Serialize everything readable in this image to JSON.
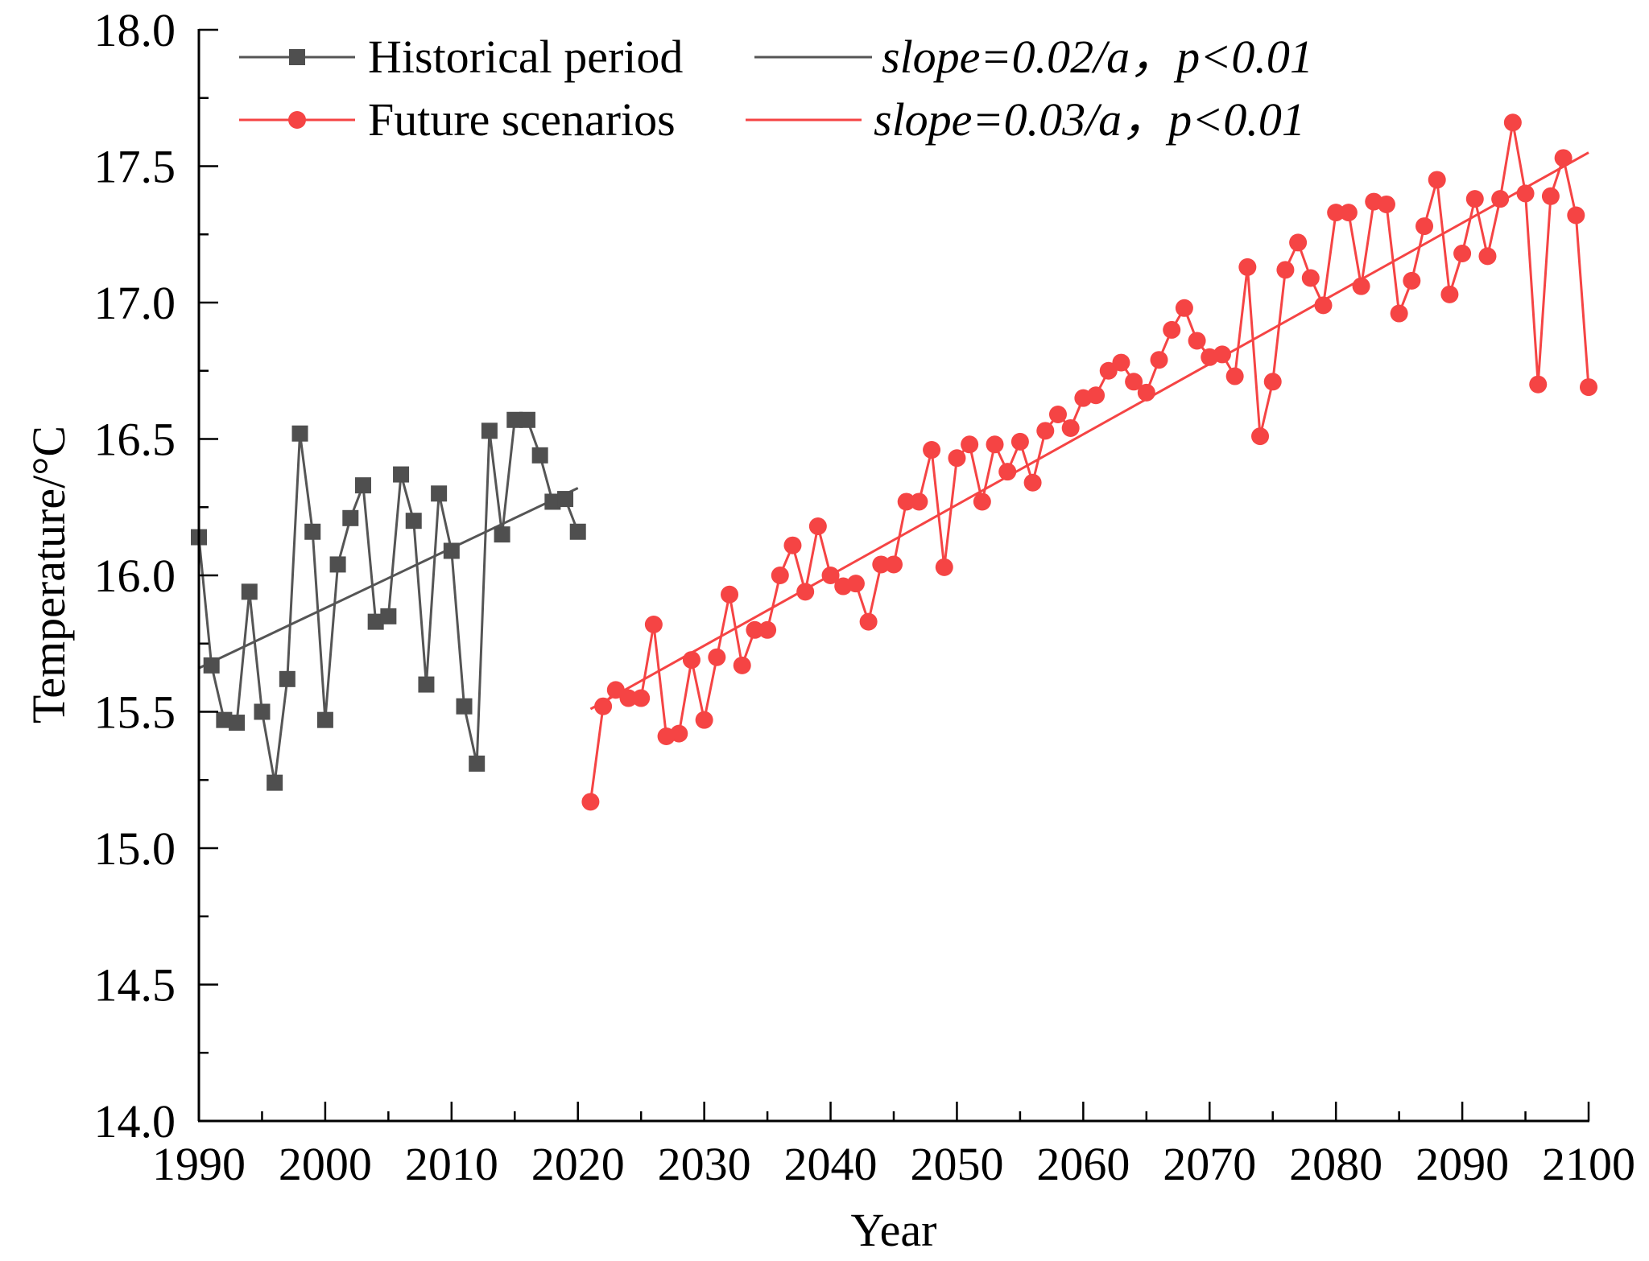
{
  "chart_data": {
    "type": "line",
    "title": "",
    "xlabel": "Year",
    "ylabel": "Temperature/°C",
    "xlim": [
      1990,
      2100
    ],
    "ylim": [
      14.0,
      18.0
    ],
    "x_ticks": [
      1990,
      2000,
      2010,
      2020,
      2030,
      2040,
      2050,
      2060,
      2070,
      2080,
      2090,
      2100
    ],
    "x_tick_labels": [
      "1990",
      "2000",
      "2010",
      "2020",
      "2030",
      "2040",
      "2050",
      "2060",
      "2070",
      "2080",
      "2090",
      "2100"
    ],
    "x_minor_step": 5,
    "y_ticks": [
      14.0,
      14.5,
      15.0,
      15.5,
      16.0,
      16.5,
      17.0,
      17.5,
      18.0
    ],
    "y_tick_labels": [
      "14.0",
      "14.5",
      "15.0",
      "15.5",
      "16.0",
      "16.5",
      "17.0",
      "17.5",
      "18.0"
    ],
    "y_minor_step": 0.25,
    "grid": false,
    "legend_position": "top-left",
    "series": [
      {
        "name": "Historical period",
        "marker": "square",
        "color": "#4f4f4f",
        "x": [
          1990,
          1991,
          1992,
          1993,
          1994,
          1995,
          1996,
          1997,
          1998,
          1999,
          2000,
          2001,
          2002,
          2003,
          2004,
          2005,
          2006,
          2007,
          2008,
          2009,
          2010,
          2011,
          2012,
          2013,
          2014,
          2015,
          2016,
          2017,
          2018,
          2019,
          2020
        ],
        "values": [
          16.14,
          15.67,
          15.47,
          15.46,
          15.94,
          15.5,
          15.24,
          15.62,
          16.52,
          16.16,
          15.47,
          16.04,
          16.21,
          16.33,
          15.83,
          15.85,
          16.37,
          16.2,
          15.6,
          16.3,
          16.09,
          15.52,
          15.31,
          16.53,
          16.15,
          16.57,
          16.57,
          16.44,
          16.27,
          16.28,
          16.16
        ]
      },
      {
        "name": "Future scenarios",
        "marker": "circle",
        "color": "#f54444",
        "x": [
          2021,
          2022,
          2023,
          2024,
          2025,
          2026,
          2027,
          2028,
          2029,
          2030,
          2031,
          2032,
          2033,
          2034,
          2035,
          2036,
          2037,
          2038,
          2039,
          2040,
          2041,
          2042,
          2043,
          2044,
          2045,
          2046,
          2047,
          2048,
          2049,
          2050,
          2051,
          2052,
          2053,
          2054,
          2055,
          2056,
          2057,
          2058,
          2059,
          2060,
          2061,
          2062,
          2063,
          2064,
          2065,
          2066,
          2067,
          2068,
          2069,
          2070,
          2071,
          2072,
          2073,
          2074,
          2075,
          2076,
          2077,
          2078,
          2079,
          2080,
          2081,
          2082,
          2083,
          2084,
          2085,
          2086,
          2087,
          2088,
          2089,
          2090,
          2091,
          2092,
          2093,
          2094,
          2095,
          2096,
          2097,
          2098,
          2099,
          2100
        ],
        "values": [
          15.17,
          15.52,
          15.58,
          15.55,
          15.55,
          15.82,
          15.41,
          15.42,
          15.69,
          15.47,
          15.7,
          15.93,
          15.67,
          15.8,
          15.8,
          16.0,
          16.11,
          15.94,
          16.18,
          16.0,
          15.96,
          15.97,
          15.83,
          16.04,
          16.04,
          16.27,
          16.27,
          16.46,
          16.03,
          16.43,
          16.48,
          16.27,
          16.48,
          16.38,
          16.49,
          16.34,
          16.53,
          16.59,
          16.54,
          16.65,
          16.66,
          16.75,
          16.78,
          16.71,
          16.67,
          16.79,
          16.9,
          16.98,
          16.86,
          16.8,
          16.81,
          16.73,
          17.13,
          16.51,
          16.71,
          17.12,
          17.22,
          17.09,
          16.99,
          17.33,
          17.33,
          17.06,
          17.37,
          17.36,
          16.96,
          17.08,
          17.28,
          17.45,
          17.03,
          17.18,
          17.38,
          17.17,
          17.38,
          17.66,
          17.4,
          16.7,
          17.39,
          17.53,
          17.32,
          16.69
        ]
      }
    ],
    "trend_lines": [
      {
        "name": "slope=0.02/a，p<0.01",
        "color": "#555555",
        "x": [
          1990,
          2020
        ],
        "values": [
          15.66,
          16.32
        ]
      },
      {
        "name": "slope=0.03/a，p<0.01",
        "color": "#f54444",
        "x": [
          2021,
          2100
        ],
        "values": [
          15.51,
          17.55
        ]
      }
    ]
  },
  "legend": {
    "historical_label": "Historical period",
    "future_label": "Future scenarios",
    "hist_trend_label": "slope=0.02/a，p<0.01",
    "future_trend_label": "slope=0.03/a，p<0.01"
  }
}
